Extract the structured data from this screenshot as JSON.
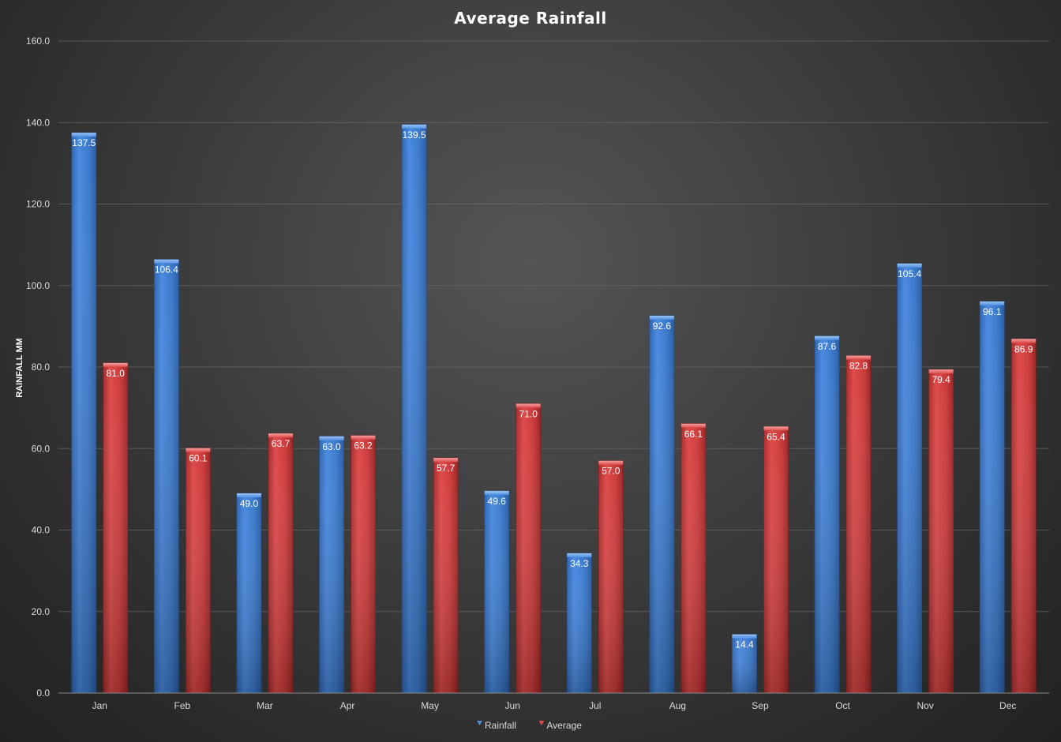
{
  "chart_data": {
    "type": "bar",
    "title": "Average Rainfall",
    "ylabel": "RAINFALL MM",
    "xlabel": "",
    "ylim": [
      0,
      160
    ],
    "yticks": [
      "0.0",
      "20.0",
      "40.0",
      "60.0",
      "80.0",
      "100.0",
      "120.0",
      "140.0",
      "160.0"
    ],
    "grid": true,
    "legend_position": "bottom",
    "categories": [
      "Jan",
      "Feb",
      "Mar",
      "Apr",
      "May",
      "Jun",
      "Jul",
      "Aug",
      "Sep",
      "Oct",
      "Nov",
      "Dec"
    ],
    "series": [
      {
        "name": "Rainfall",
        "color": "#3f7fd4",
        "values": [
          137.5,
          106.4,
          49.0,
          63.0,
          139.5,
          49.6,
          34.3,
          92.6,
          14.4,
          87.6,
          105.4,
          96.1
        ],
        "labels": [
          "137.5",
          "106.4",
          "49.0",
          "63.0",
          "139.5",
          "49.6",
          "34.3",
          "92.6",
          "14.4",
          "87.6",
          "105.4",
          "96.1"
        ]
      },
      {
        "name": "Average",
        "color": "#d23e3e",
        "values": [
          81.0,
          60.1,
          63.7,
          63.2,
          57.7,
          71.0,
          57.0,
          66.1,
          65.4,
          82.8,
          79.4,
          86.9
        ],
        "labels": [
          "81.0",
          "60.1",
          "63.7",
          "63.2",
          "57.7",
          "71.0",
          "57.0",
          "66.1",
          "65.4",
          "82.8",
          "79.4",
          "86.9"
        ]
      }
    ]
  }
}
